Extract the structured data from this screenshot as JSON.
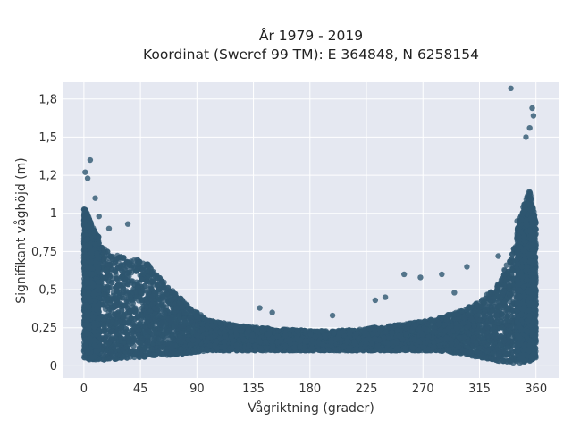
{
  "chart_data": {
    "type": "scatter",
    "title_line1": "År 1979 - 2019",
    "title_line2": "Koordinat (Sweref 99 TM): E 364848, N 6258154",
    "xlabel": "Vågriktning (grader)",
    "ylabel": "Signifikant våghöjd (m)",
    "xlim": [
      -17,
      378
    ],
    "ylim": [
      -0.08,
      1.86
    ],
    "x_ticks": [
      0,
      45,
      90,
      135,
      180,
      225,
      270,
      315,
      360
    ],
    "x_tick_labels": [
      "0",
      "45",
      "90",
      "135",
      "180",
      "225",
      "270",
      "315",
      "360"
    ],
    "y_ticks": [
      0,
      0.25,
      0.5,
      0.75,
      1,
      1.25,
      1.5,
      1.75
    ],
    "y_tick_labels": [
      "0",
      "0,25",
      "0,5",
      "0,75",
      "1",
      "1,2",
      "1,5",
      "1,8"
    ],
    "grid": true,
    "marker_color": "#2e5670",
    "plot_background": "#e5e8f1",
    "envelope": {
      "direction": [
        0,
        10,
        20,
        30,
        40,
        50,
        60,
        70,
        80,
        90,
        100,
        120,
        140,
        160,
        180,
        200,
        220,
        240,
        260,
        280,
        300,
        310,
        320,
        330,
        340,
        345,
        350,
        355,
        360
      ],
      "upper_height": [
        1.0,
        0.82,
        0.74,
        0.72,
        0.7,
        0.68,
        0.58,
        0.5,
        0.42,
        0.35,
        0.3,
        0.27,
        0.25,
        0.24,
        0.23,
        0.23,
        0.24,
        0.26,
        0.28,
        0.31,
        0.36,
        0.4,
        0.46,
        0.55,
        0.72,
        0.85,
        1.0,
        1.1,
        0.9
      ],
      "lower_height": [
        0.05,
        0.04,
        0.04,
        0.05,
        0.05,
        0.06,
        0.07,
        0.07,
        0.08,
        0.09,
        0.1,
        0.1,
        0.1,
        0.1,
        0.1,
        0.1,
        0.1,
        0.1,
        0.1,
        0.1,
        0.08,
        0.06,
        0.05,
        0.03,
        0.02,
        0.02,
        0.02,
        0.03,
        0.05
      ]
    },
    "notable_points": [
      {
        "x": 5,
        "y": 1.35
      },
      {
        "x": 1,
        "y": 1.27
      },
      {
        "x": 3,
        "y": 1.23
      },
      {
        "x": 9,
        "y": 1.1
      },
      {
        "x": 12,
        "y": 0.98
      },
      {
        "x": 35,
        "y": 0.93
      },
      {
        "x": 20,
        "y": 0.9
      },
      {
        "x": 340,
        "y": 1.82
      },
      {
        "x": 357,
        "y": 1.69
      },
      {
        "x": 358,
        "y": 1.64
      },
      {
        "x": 355,
        "y": 1.56
      },
      {
        "x": 352,
        "y": 1.5
      },
      {
        "x": 345,
        "y": 0.95
      },
      {
        "x": 330,
        "y": 0.72
      },
      {
        "x": 305,
        "y": 0.65
      },
      {
        "x": 268,
        "y": 0.58
      },
      {
        "x": 255,
        "y": 0.6
      },
      {
        "x": 240,
        "y": 0.45
      },
      {
        "x": 295,
        "y": 0.48
      },
      {
        "x": 285,
        "y": 0.6
      },
      {
        "x": 232,
        "y": 0.43
      },
      {
        "x": 140,
        "y": 0.38
      },
      {
        "x": 150,
        "y": 0.35
      },
      {
        "x": 198,
        "y": 0.33
      }
    ]
  }
}
